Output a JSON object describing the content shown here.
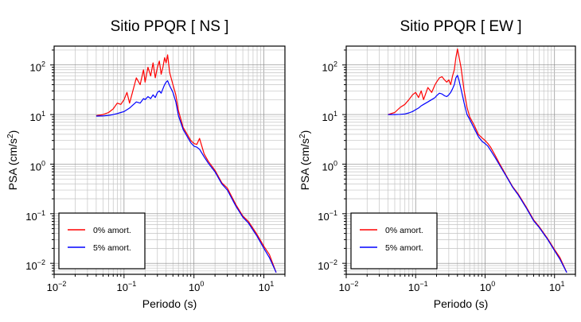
{
  "chart_data": [
    {
      "type": "line",
      "title": "Sitio PPQR [ NS ]",
      "xlabel": "Periodo (s)",
      "ylabel_base": "PSA (cm/s",
      "ylabel_exp": "2",
      "ylabel_tail": ")",
      "x_scale": "log",
      "y_scale": "log",
      "xlim": [
        0.01,
        20
      ],
      "ylim": [
        0.006,
        240
      ],
      "grid": true,
      "x_ticks": [
        {
          "base": "10",
          "exp": "−2"
        },
        {
          "base": "10",
          "exp": "−1"
        },
        {
          "base": "10",
          "exp": "0"
        },
        {
          "base": "10",
          "exp": "1"
        }
      ],
      "y_ticks": [
        {
          "base": "10",
          "exp": "−2"
        },
        {
          "base": "10",
          "exp": "−1"
        },
        {
          "base": "10",
          "exp": "0"
        },
        {
          "base": "10",
          "exp": "1"
        },
        {
          "base": "10",
          "exp": "2"
        }
      ],
      "legend_position": "bottom-left",
      "series": [
        {
          "name": "0% amort.",
          "color": "#ff0000",
          "x": [
            0.04,
            0.05,
            0.06,
            0.07,
            0.08,
            0.09,
            0.1,
            0.11,
            0.12,
            0.13,
            0.15,
            0.17,
            0.19,
            0.2,
            0.22,
            0.24,
            0.26,
            0.28,
            0.3,
            0.32,
            0.34,
            0.36,
            0.38,
            0.4,
            0.42,
            0.45,
            0.5,
            0.55,
            0.6,
            0.7,
            0.8,
            0.9,
            1.0,
            1.1,
            1.2,
            1.4,
            1.6,
            2.0,
            2.5,
            3.0,
            4.0,
            5.0,
            6.0,
            8.0,
            10.0,
            12.0,
            15.0
          ],
          "y": [
            9.5,
            10.0,
            11.0,
            13.0,
            17.0,
            16.0,
            20.0,
            28.0,
            17.0,
            26.0,
            55.0,
            40.0,
            80.0,
            45.0,
            90.0,
            60.0,
            110.0,
            55.0,
            90.0,
            120.0,
            65.0,
            90.0,
            140.0,
            110.0,
            160.0,
            70.0,
            40.0,
            25.0,
            12.0,
            5.5,
            4.0,
            3.0,
            2.6,
            2.5,
            3.3,
            1.6,
            1.15,
            0.75,
            0.42,
            0.33,
            0.15,
            0.09,
            0.07,
            0.038,
            0.022,
            0.015,
            0.0065
          ]
        },
        {
          "name": "5% amort.",
          "color": "#0000ff",
          "x": [
            0.04,
            0.05,
            0.06,
            0.07,
            0.08,
            0.09,
            0.1,
            0.11,
            0.12,
            0.13,
            0.15,
            0.17,
            0.19,
            0.2,
            0.22,
            0.24,
            0.26,
            0.28,
            0.3,
            0.32,
            0.34,
            0.36,
            0.38,
            0.4,
            0.42,
            0.45,
            0.5,
            0.55,
            0.6,
            0.7,
            0.8,
            0.9,
            1.0,
            1.1,
            1.2,
            1.4,
            1.6,
            2.0,
            2.5,
            3.0,
            4.0,
            5.0,
            6.0,
            8.0,
            10.0,
            12.0,
            15.0
          ],
          "y": [
            9.3,
            9.4,
            9.6,
            10.0,
            10.5,
            11.0,
            11.5,
            12.5,
            13.5,
            15.0,
            18.0,
            17.0,
            21.0,
            20.0,
            23.0,
            21.0,
            25.0,
            22.0,
            28.0,
            30.0,
            27.0,
            33.0,
            40.0,
            45.0,
            48.0,
            38.0,
            28.0,
            18.0,
            9.5,
            5.0,
            3.6,
            2.7,
            2.3,
            2.2,
            2.0,
            1.4,
            1.05,
            0.7,
            0.4,
            0.3,
            0.14,
            0.085,
            0.065,
            0.035,
            0.02,
            0.013,
            0.0065
          ]
        }
      ]
    },
    {
      "type": "line",
      "title": "Sitio PPQR [ EW ]",
      "xlabel": "Periodo (s)",
      "ylabel_base": "PSA (cm/s",
      "ylabel_exp": "2",
      "ylabel_tail": ")",
      "x_scale": "log",
      "y_scale": "log",
      "xlim": [
        0.01,
        20
      ],
      "ylim": [
        0.006,
        240
      ],
      "grid": true,
      "x_ticks": [
        {
          "base": "10",
          "exp": "−2"
        },
        {
          "base": "10",
          "exp": "−1"
        },
        {
          "base": "10",
          "exp": "0"
        },
        {
          "base": "10",
          "exp": "1"
        }
      ],
      "y_ticks": [
        {
          "base": "10",
          "exp": "−2"
        },
        {
          "base": "10",
          "exp": "−1"
        },
        {
          "base": "10",
          "exp": "0"
        },
        {
          "base": "10",
          "exp": "1"
        },
        {
          "base": "10",
          "exp": "2"
        }
      ],
      "legend_position": "bottom-left",
      "series": [
        {
          "name": "0% amort.",
          "color": "#ff0000",
          "x": [
            0.04,
            0.05,
            0.06,
            0.07,
            0.08,
            0.09,
            0.1,
            0.11,
            0.12,
            0.13,
            0.15,
            0.17,
            0.19,
            0.2,
            0.22,
            0.24,
            0.26,
            0.28,
            0.3,
            0.32,
            0.34,
            0.36,
            0.38,
            0.4,
            0.42,
            0.45,
            0.5,
            0.55,
            0.6,
            0.7,
            0.8,
            0.9,
            1.0,
            1.1,
            1.2,
            1.4,
            1.6,
            2.0,
            2.5,
            3.0,
            4.0,
            5.0,
            6.0,
            8.0,
            10.0,
            12.0,
            15.0
          ],
          "y": [
            10.0,
            11.0,
            14.0,
            16.0,
            20.0,
            25.0,
            28.0,
            22.0,
            30.0,
            20.0,
            35.0,
            28.0,
            40.0,
            45.0,
            55.0,
            58.0,
            50.0,
            45.0,
            50.0,
            40.0,
            60.0,
            80.0,
            140.0,
            210.0,
            150.0,
            90.0,
            30.0,
            14.0,
            9.0,
            6.0,
            4.0,
            3.4,
            3.0,
            2.6,
            2.2,
            1.5,
            1.05,
            0.6,
            0.35,
            0.25,
            0.13,
            0.075,
            0.055,
            0.031,
            0.019,
            0.013,
            0.0065
          ]
        },
        {
          "name": "5% amort.",
          "color": "#0000ff",
          "x": [
            0.04,
            0.05,
            0.06,
            0.07,
            0.08,
            0.09,
            0.1,
            0.11,
            0.12,
            0.13,
            0.15,
            0.17,
            0.19,
            0.2,
            0.22,
            0.24,
            0.26,
            0.28,
            0.3,
            0.32,
            0.34,
            0.36,
            0.38,
            0.4,
            0.42,
            0.45,
            0.5,
            0.55,
            0.6,
            0.7,
            0.8,
            0.9,
            1.0,
            1.1,
            1.2,
            1.4,
            1.6,
            2.0,
            2.5,
            3.0,
            4.0,
            5.0,
            6.0,
            8.0,
            10.0,
            12.0,
            15.0
          ],
          "y": [
            10.0,
            10.0,
            10.1,
            10.3,
            10.8,
            11.5,
            12.5,
            13.5,
            15.0,
            16.0,
            18.0,
            20.0,
            22.0,
            24.0,
            27.0,
            26.0,
            24.0,
            23.0,
            25.0,
            28.0,
            33.0,
            40.0,
            55.0,
            62.0,
            50.0,
            33.0,
            17.0,
            10.0,
            8.0,
            5.2,
            3.6,
            2.9,
            2.6,
            2.3,
            1.9,
            1.35,
            0.98,
            0.58,
            0.34,
            0.24,
            0.125,
            0.072,
            0.053,
            0.03,
            0.018,
            0.012,
            0.0065
          ]
        }
      ]
    }
  ]
}
